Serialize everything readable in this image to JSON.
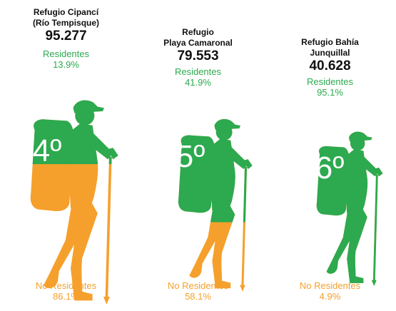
{
  "colors": {
    "residents": "#2da94f",
    "non_residents": "#f5a02c"
  },
  "chart_data": {
    "type": "bar",
    "categories": [
      "Refugio Cipancí (Río Tempisque)",
      "Refugio Playa Camaronal",
      "Refugio Bahía Junquillal"
    ],
    "series": [
      {
        "name": "Residentes",
        "values": [
          13.9,
          41.9,
          95.1
        ]
      },
      {
        "name": "No Residentes",
        "values": [
          86.1,
          58.1,
          4.9
        ]
      }
    ],
    "visits": [
      "95.277",
      "79.553",
      "40.628"
    ],
    "ranks": [
      "4º",
      "5º",
      "6º"
    ]
  },
  "columns": [
    {
      "name_lines": [
        "Refugio Cipancí",
        "(Río Tempisque)"
      ],
      "visits": "95.277",
      "rank": "4º",
      "residents_label": "Residentes",
      "residents_pct": "13.9%",
      "non_residents_label": "No Residentes",
      "non_residents_pct": "86.1%"
    },
    {
      "name_lines": [
        "Refugio",
        "Playa Camaronal"
      ],
      "visits": "79.553",
      "rank": "5º",
      "residents_label": "Residentes",
      "residents_pct": "41.9%",
      "non_residents_label": "No Residentes",
      "non_residents_pct": "58.1%"
    },
    {
      "name_lines": [
        "Refugio Bahía",
        "Junquillal"
      ],
      "visits": "40.628",
      "rank": "6º",
      "residents_label": "Residentes",
      "residents_pct": "95.1%",
      "non_residents_label": "No Residentes",
      "non_residents_pct": "4.9%"
    }
  ]
}
